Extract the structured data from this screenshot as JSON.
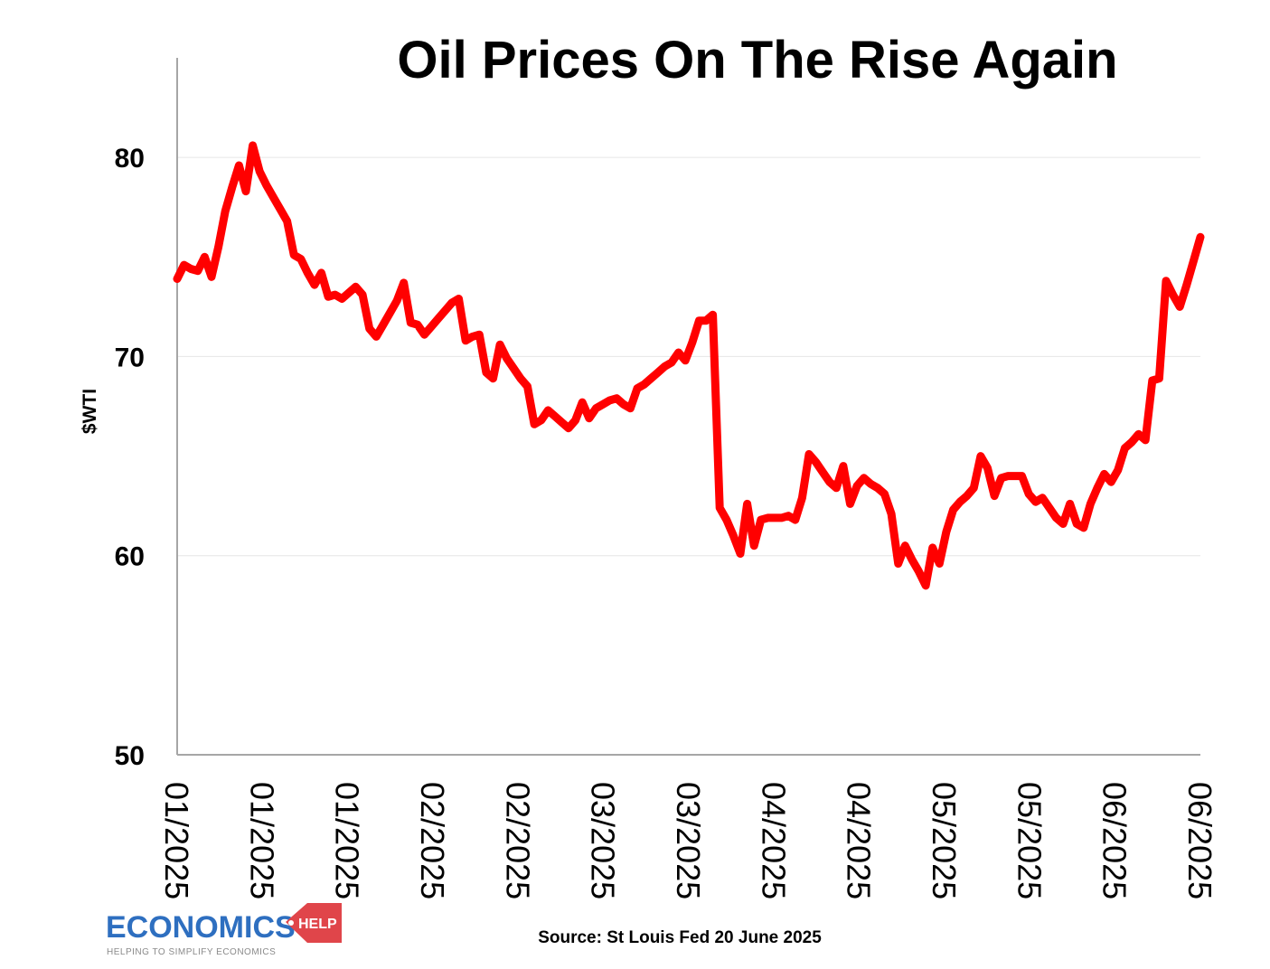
{
  "chart_data": {
    "type": "line",
    "title": "Oil Prices On The Rise Again",
    "ylabel": "$WTI",
    "xlabel": "",
    "ylim": [
      50,
      85
    ],
    "yticks": [
      50,
      60,
      70,
      80
    ],
    "grid": "horizontal",
    "xtick_labels": [
      "01/2025",
      "01/2025",
      "01/2025",
      "02/2025",
      "02/2025",
      "03/2025",
      "03/2025",
      "04/2025",
      "04/2025",
      "05/2025",
      "05/2025",
      "06/2025",
      "06/2025"
    ],
    "series": [
      {
        "color": "#ff0000",
        "values": [
          73.9,
          74.6,
          74.4,
          74.3,
          75.0,
          74.0,
          75.5,
          77.3,
          78.5,
          79.6,
          78.3,
          80.6,
          79.3,
          78.6,
          78.0,
          77.4,
          76.8,
          75.1,
          74.9,
          74.2,
          73.6,
          74.2,
          73.0,
          73.1,
          72.9,
          73.2,
          73.5,
          73.1,
          71.4,
          71.0,
          71.6,
          72.2,
          72.8,
          73.7,
          71.7,
          71.6,
          71.1,
          71.5,
          71.9,
          72.3,
          72.7,
          72.9,
          70.8,
          71.0,
          71.1,
          69.2,
          68.9,
          70.6,
          69.9,
          69.4,
          68.9,
          68.5,
          66.6,
          66.8,
          67.3,
          67.0,
          66.7,
          66.4,
          66.8,
          67.7,
          66.9,
          67.4,
          67.6,
          67.8,
          67.9,
          67.6,
          67.4,
          68.4,
          68.6,
          68.9,
          69.2,
          69.5,
          69.7,
          70.2,
          69.8,
          70.7,
          71.8,
          71.8,
          72.1,
          62.4,
          61.8,
          61.0,
          60.1,
          62.6,
          60.5,
          61.8,
          61.9,
          61.9,
          61.9,
          62.0,
          61.8,
          62.9,
          65.1,
          64.7,
          64.2,
          63.7,
          63.4,
          64.5,
          62.6,
          63.5,
          63.9,
          63.6,
          63.4,
          63.1,
          62.1,
          59.6,
          60.5,
          59.8,
          59.2,
          58.5,
          60.4,
          59.6,
          61.2,
          62.3,
          62.7,
          63.0,
          63.4,
          65.0,
          64.4,
          63.0,
          63.9,
          64.0,
          64.0,
          64.0,
          63.1,
          62.7,
          62.9,
          62.4,
          61.9,
          61.6,
          62.6,
          61.6,
          61.4,
          62.6,
          63.4,
          64.1,
          63.7,
          64.3,
          65.4,
          65.7,
          66.1,
          65.8,
          68.8,
          68.9,
          73.8,
          73.1,
          72.5,
          73.6,
          74.8,
          76.0
        ]
      }
    ]
  },
  "source": "Source: St Louis Fed 20 June 2025",
  "logo": {
    "main": "ECONOMICS",
    "help": "HELP",
    "tagline": "HELPING TO SIMPLIFY ECONOMICS"
  }
}
